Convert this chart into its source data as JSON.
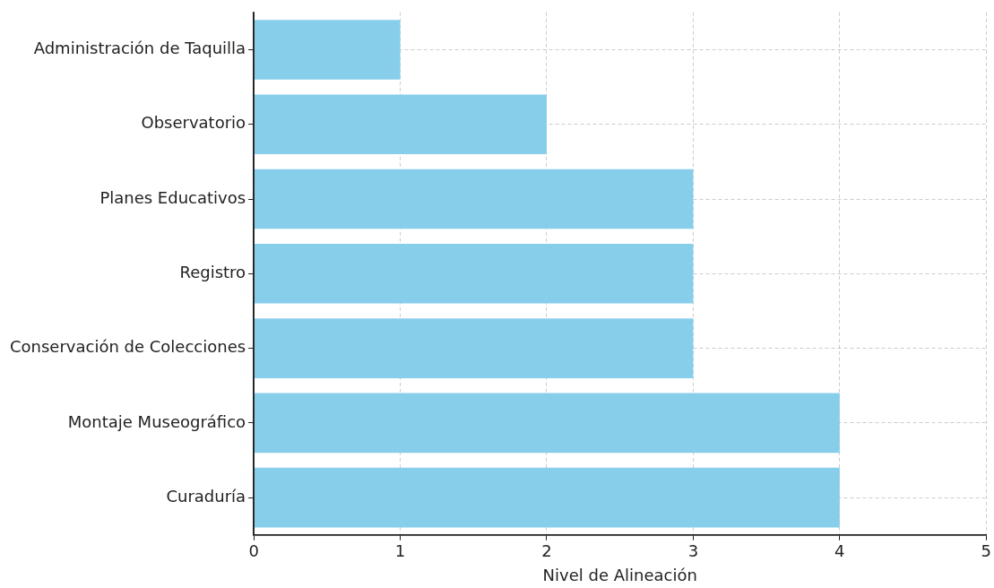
{
  "chart_data": {
    "type": "bar",
    "orientation": "horizontal",
    "xlabel": "Nivel de Alineación",
    "categories": [
      "Administración de Taquilla",
      "Observatorio",
      "Planes Educativos",
      "Registro",
      "Conservación de Colecciones",
      "Montaje Museográfico",
      "Curaduría"
    ],
    "values": [
      1,
      2,
      3,
      3,
      3,
      4,
      4
    ],
    "color": "#87ceeb",
    "xlim": [
      0,
      5
    ],
    "xticks": [
      0,
      1,
      2,
      3,
      4,
      5
    ],
    "grid": true,
    "legend": false
  }
}
